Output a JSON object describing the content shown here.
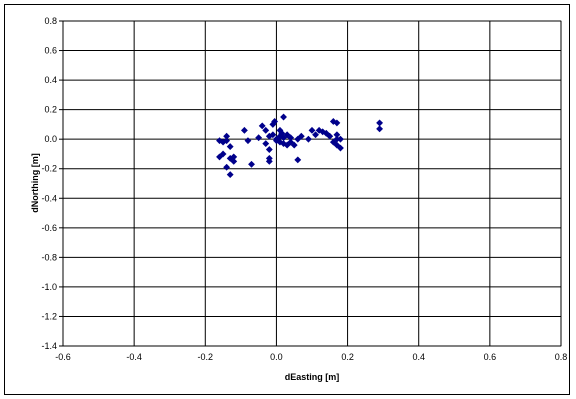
{
  "chart_data": {
    "type": "scatter",
    "title": "",
    "xlabel": "dEasting [m]",
    "ylabel": "dNorthing [m]",
    "xlim": [
      -0.6,
      0.8
    ],
    "ylim": [
      -1.4,
      0.8
    ],
    "x_ticks": [
      "-0.6",
      "-0.4",
      "-0.2",
      "0.0",
      "0.2",
      "0.4",
      "0.6",
      "0.8"
    ],
    "y_ticks": [
      "0.8",
      "0.6",
      "0.4",
      "0.2",
      "0.0",
      "-0.2",
      "-0.4",
      "-0.6",
      "-0.8",
      "-1.0",
      "-1.2",
      "-1.4"
    ],
    "grid": true,
    "legend": false,
    "marker_color": "#00008b",
    "series": [
      {
        "points": [
          [
            -0.16,
            -0.01
          ],
          [
            -0.15,
            -0.02
          ],
          [
            -0.14,
            0.02
          ],
          [
            -0.14,
            -0.01
          ],
          [
            -0.13,
            -0.05
          ],
          [
            -0.16,
            -0.12
          ],
          [
            -0.15,
            -0.1
          ],
          [
            -0.13,
            -0.13
          ],
          [
            -0.12,
            -0.15
          ],
          [
            -0.14,
            -0.19
          ],
          [
            -0.13,
            -0.24
          ],
          [
            -0.12,
            -0.12
          ],
          [
            -0.09,
            0.06
          ],
          [
            -0.08,
            -0.01
          ],
          [
            -0.07,
            -0.17
          ],
          [
            -0.05,
            0.01
          ],
          [
            -0.04,
            0.09
          ],
          [
            -0.03,
            -0.03
          ],
          [
            -0.02,
            0.02
          ],
          [
            -0.02,
            -0.07
          ],
          [
            -0.01,
            0.1
          ],
          [
            -0.01,
            0.03
          ],
          [
            0.0,
            0.0
          ],
          [
            0.0,
            -0.01
          ],
          [
            0.01,
            0.06
          ],
          [
            0.01,
            0.02
          ],
          [
            0.01,
            -0.02
          ],
          [
            0.02,
            0.15
          ],
          [
            0.02,
            0.01
          ],
          [
            0.02,
            -0.03
          ],
          [
            0.03,
            0.03
          ],
          [
            0.03,
            -0.04
          ],
          [
            0.04,
            0.01
          ],
          [
            0.04,
            -0.02
          ],
          [
            0.05,
            -0.04
          ],
          [
            0.06,
            0.0
          ],
          [
            0.06,
            -0.14
          ],
          [
            -0.02,
            -0.13
          ],
          [
            -0.02,
            -0.15
          ],
          [
            0.07,
            0.02
          ],
          [
            0.09,
            0.0
          ],
          [
            0.1,
            0.06
          ],
          [
            0.11,
            0.03
          ],
          [
            0.12,
            0.06
          ],
          [
            0.13,
            0.05
          ],
          [
            0.14,
            0.04
          ],
          [
            0.15,
            0.02
          ],
          [
            0.16,
            0.12
          ],
          [
            0.16,
            -0.02
          ],
          [
            0.17,
            0.11
          ],
          [
            0.17,
            0.03
          ],
          [
            0.17,
            0.0
          ],
          [
            0.17,
            -0.04
          ],
          [
            0.18,
            -0.06
          ],
          [
            0.18,
            0.0
          ],
          [
            0.29,
            0.11
          ],
          [
            0.29,
            0.07
          ],
          [
            -0.005,
            0.12
          ],
          [
            0.015,
            0.04
          ],
          [
            -0.03,
            0.06
          ]
        ]
      }
    ]
  }
}
